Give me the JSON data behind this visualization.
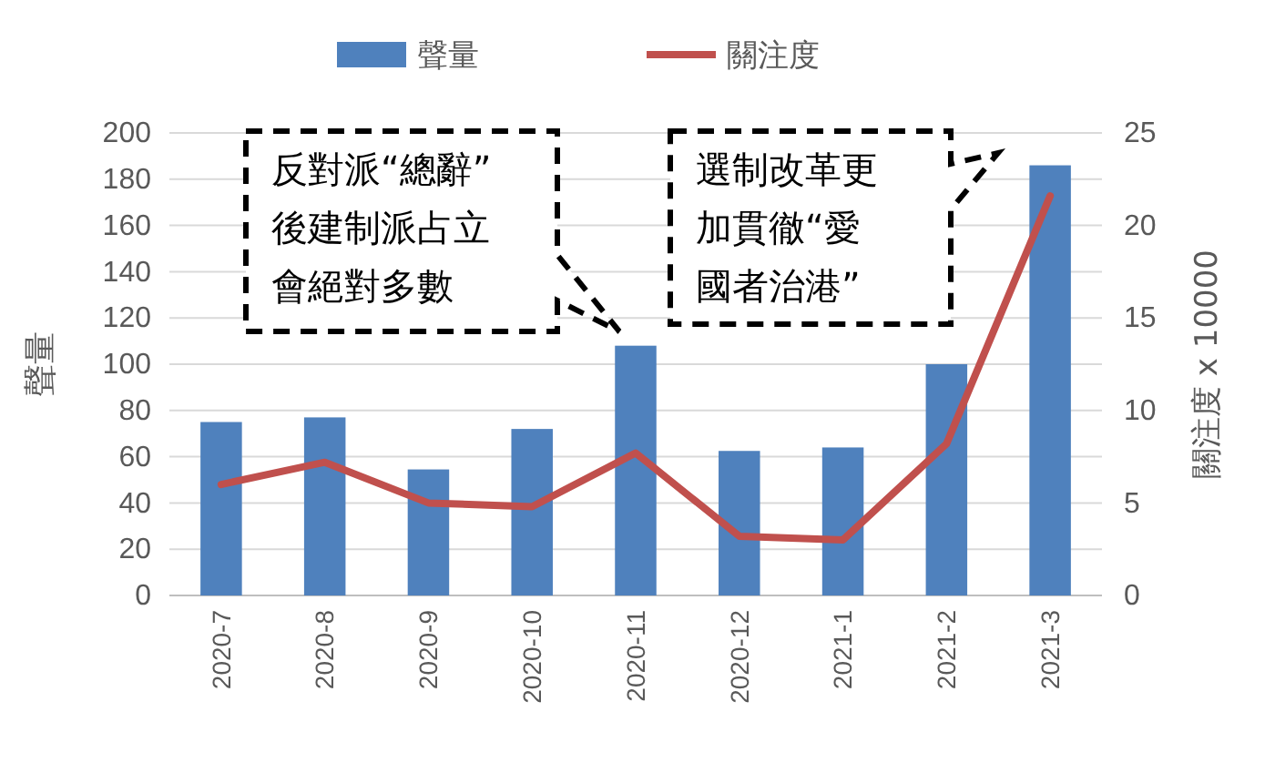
{
  "chart_data": {
    "type": "bar",
    "categories": [
      "2020-7",
      "2020-8",
      "2020-9",
      "2020-10",
      "2020-11",
      "2020-12",
      "2021-1",
      "2021-2",
      "2021-3"
    ],
    "series": [
      {
        "name": "聲量",
        "color": "#4f81bd",
        "values": [
          75,
          77,
          54.5,
          72,
          108,
          62.5,
          64,
          100,
          186
        ]
      },
      {
        "name": "關注度",
        "type": "line",
        "axis": "y2",
        "color": "#c0504d",
        "values": [
          6.0,
          7.2,
          5.0,
          4.8,
          7.7,
          3.2,
          3.0,
          8.2,
          21.6
        ]
      }
    ],
    "ylabel": "聲量",
    "y2label": "關注度 x 10000",
    "ylim": [
      0,
      200
    ],
    "yticks": [
      0,
      20,
      40,
      60,
      80,
      100,
      120,
      140,
      160,
      180,
      200
    ],
    "y2lim": [
      0,
      25
    ],
    "y2ticks": [
      0,
      5,
      10,
      15,
      20,
      25
    ],
    "grid": "y",
    "legend": "top",
    "marker": "none",
    "annotations": [
      "反對派“總辭”後建制派占立會絕對多數",
      "選制改革更加貫徹“愛國者治港”"
    ]
  }
}
